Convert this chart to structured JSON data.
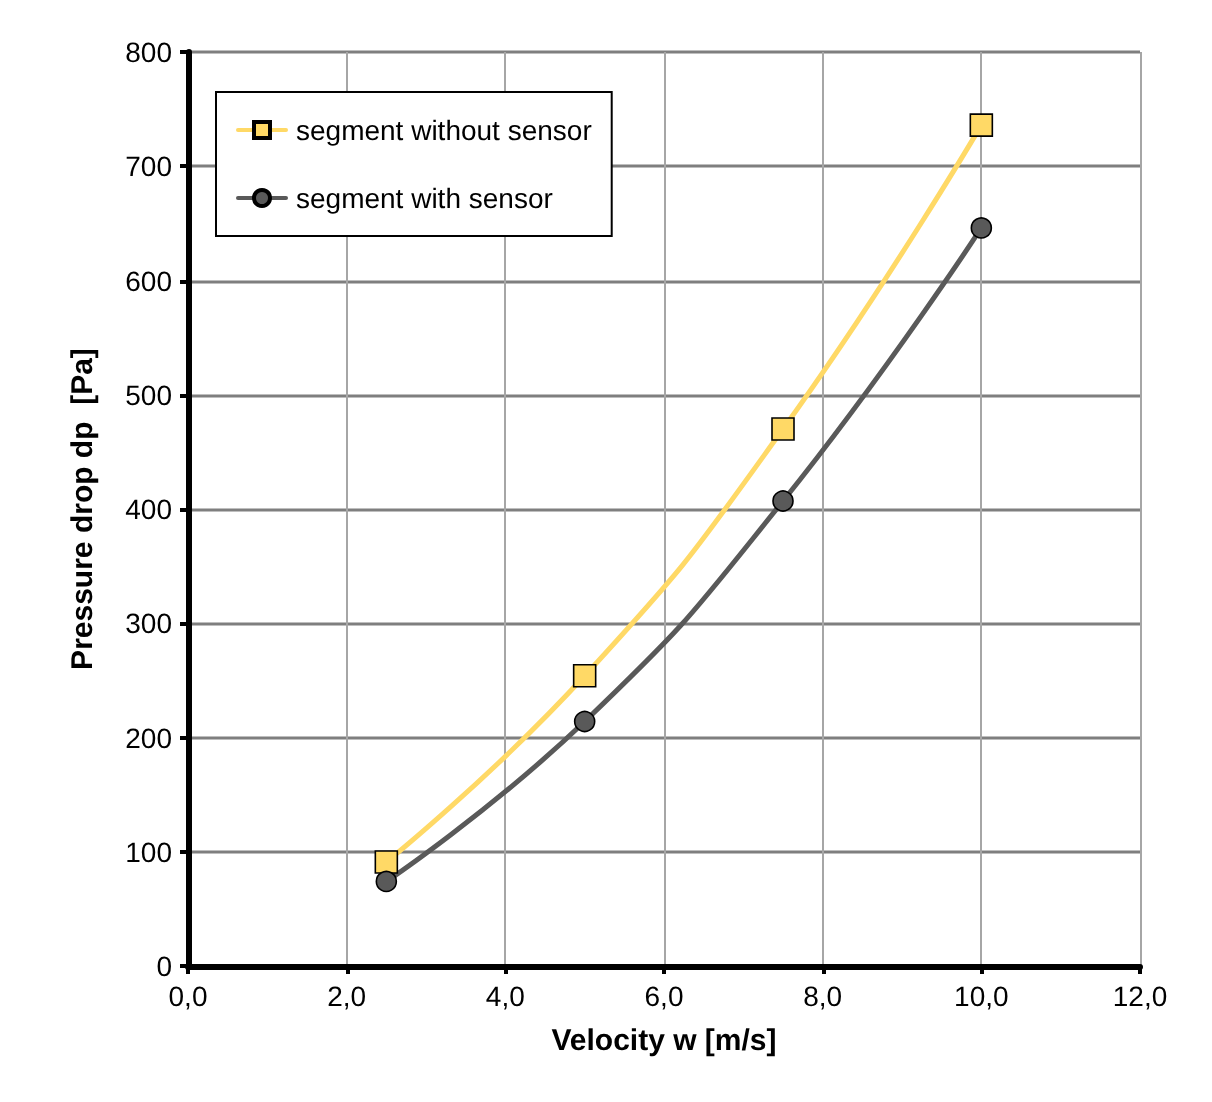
{
  "chart_data": {
    "type": "line",
    "xlabel": "Velocity w [m/s]",
    "ylabel": "Pressure drop dp  [Pa]",
    "x": [
      2.5,
      5.0,
      7.5,
      10.0
    ],
    "series": [
      {
        "name": "segment without sensor",
        "color": "#ffd966",
        "marker": "square",
        "values": [
          91,
          254,
          470,
          736
        ]
      },
      {
        "name": "segment with sensor",
        "color": "#595959",
        "marker": "circle",
        "values": [
          74,
          214,
          407,
          646
        ]
      }
    ],
    "xlim": [
      0,
      12
    ],
    "xticks": [
      {
        "value": 0,
        "label": "0,0"
      },
      {
        "value": 2,
        "label": "2,0"
      },
      {
        "value": 4,
        "label": "4,0"
      },
      {
        "value": 6,
        "label": "6,0"
      },
      {
        "value": 8,
        "label": "8,0"
      },
      {
        "value": 10,
        "label": "10,0"
      },
      {
        "value": 12,
        "label": "12,0"
      }
    ],
    "ylim": [
      0,
      800
    ],
    "yticks": [
      0,
      100,
      200,
      300,
      400,
      500,
      600,
      700,
      800
    ],
    "grid": true,
    "legend": "top left",
    "line_style": "solid"
  }
}
